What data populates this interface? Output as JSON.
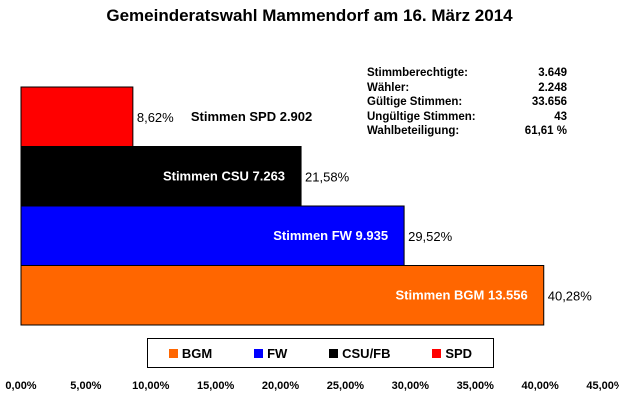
{
  "chart_data": {
    "type": "bar",
    "orientation": "horizontal",
    "title": "Gemeinderatswahl Mammendorf am 16. März 2014",
    "xlabel": "",
    "ylabel": "",
    "xlim": [
      0,
      45
    ],
    "x_ticks": [
      "0,00%",
      "5,00%",
      "10,00%",
      "15,00%",
      "20,00%",
      "25,00%",
      "30,00%",
      "35,00%",
      "40,00%",
      "45,00%"
    ],
    "bars": [
      {
        "party": "SPD",
        "value": 8.62,
        "pct_label": "8,62%",
        "votes_label": "Stimmen SPD 2.902",
        "color": "#ff0000",
        "label_inside": false,
        "label_color": "#000000"
      },
      {
        "party": "CSU",
        "value": 21.58,
        "pct_label": "21,58%",
        "votes_label": "Stimmen CSU 7.263",
        "color": "#000000",
        "label_inside": true,
        "label_color": "#ffffff"
      },
      {
        "party": "FW",
        "value": 29.52,
        "pct_label": "29,52%",
        "votes_label": "Stimmen FW 9.935",
        "color": "#0000ff",
        "label_inside": true,
        "label_color": "#ffffff"
      },
      {
        "party": "BGM",
        "value": 40.28,
        "pct_label": "40,28%",
        "votes_label": "Stimmen BGM 13.556",
        "color": "#ff6600",
        "label_inside": true,
        "label_color": "#ffffff"
      }
    ],
    "legend": [
      {
        "label": "BGM",
        "color": "#ff6600"
      },
      {
        "label": "FW",
        "color": "#0000ff"
      },
      {
        "label": "CSU/FB",
        "color": "#000000"
      },
      {
        "label": "SPD",
        "color": "#ff0000"
      }
    ],
    "legend_position": "bottom",
    "grid": false
  },
  "stats": [
    {
      "label": "Stimmberechtigte:",
      "value": "3.649"
    },
    {
      "label": "Wähler:",
      "value": "2.248"
    },
    {
      "label": "Gültige Stimmen:",
      "value": "33.656"
    },
    {
      "label": "Ungültige Stimmen:",
      "value": "43"
    },
    {
      "label": "Wahlbeteiligung:",
      "value": "61,61 %"
    }
  ]
}
